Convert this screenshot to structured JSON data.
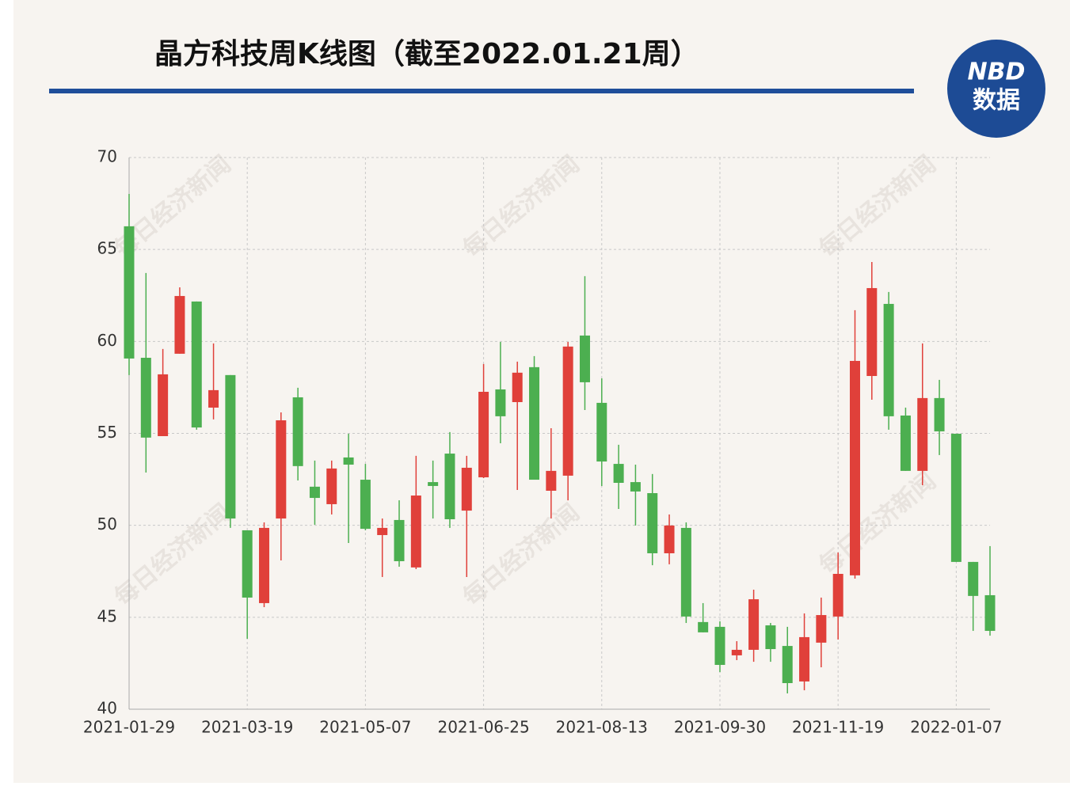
{
  "chart_data": {
    "type": "candlestick",
    "title": "晶方科技周K线图（截至2022.01.21周）",
    "logo_top": "NBD",
    "logo_bottom": "数据",
    "watermark": "每日经济新闻",
    "categories": [
      "2021-01-29",
      null,
      null,
      null,
      null,
      null,
      null,
      "2021-03-19",
      null,
      null,
      null,
      null,
      null,
      null,
      "2021-05-07",
      null,
      null,
      null,
      null,
      null,
      null,
      "2021-06-25",
      null,
      null,
      null,
      null,
      null,
      null,
      "2021-08-13",
      null,
      null,
      null,
      null,
      null,
      null,
      "2021-09-30",
      null,
      null,
      null,
      null,
      null,
      null,
      "2021-11-19",
      null,
      null,
      null,
      null,
      null,
      null,
      "2022-01-07",
      null,
      null
    ],
    "open": [
      66.26,
      59.11,
      54.85,
      59.33,
      62.17,
      56.4,
      58.17,
      49.73,
      45.77,
      50.37,
      56.96,
      52.1,
      51.15,
      53.69,
      52.48,
      49.47,
      50.29,
      47.71,
      52.35,
      53.9,
      50.8,
      52.61,
      57.39,
      56.7,
      58.6,
      51.88,
      52.7,
      60.32,
      56.66,
      53.34,
      52.35,
      51.75,
      48.48,
      49.86,
      44.74,
      44.48,
      42.93,
      43.23,
      44.56,
      43.44,
      41.51,
      43.62,
      45.04,
      47.28,
      58.12,
      62.04,
      55.97,
      52.96,
      56.92,
      54.98,
      48.01,
      46.2
    ],
    "high": [
      68.02,
      63.72,
      59.59,
      62.94,
      62.17,
      59.89,
      58.17,
      49.73,
      50.16,
      56.14,
      57.48,
      53.52,
      53.52,
      54.98,
      53.34,
      50.37,
      51.36,
      53.78,
      53.52,
      55.07,
      53.78,
      58.77,
      59.97,
      58.9,
      59.2,
      55.28,
      59.97,
      63.55,
      57.99,
      54.38,
      53.3,
      52.79,
      50.59,
      50.16,
      45.77,
      44.78,
      43.7,
      46.5,
      44.69,
      44.48,
      45.21,
      46.07,
      48.52,
      61.7,
      64.32,
      62.69,
      56.4,
      59.89,
      57.91,
      54.98,
      48.01,
      48.87
    ],
    "low": [
      58.17,
      52.87,
      54.85,
      59.33,
      55.2,
      55.76,
      49.86,
      43.83,
      45.55,
      48.09,
      52.44,
      50.03,
      50.59,
      49.04,
      49.73,
      47.19,
      47.75,
      47.62,
      50.37,
      49.86,
      47.19,
      52.57,
      54.46,
      51.92,
      52.48,
      50.37,
      51.36,
      56.27,
      52.14,
      50.89,
      49.99,
      47.83,
      47.88,
      44.69,
      44.18,
      42.02,
      42.67,
      42.58,
      42.58,
      40.86,
      41.03,
      42.28,
      43.79,
      47.1,
      56.83,
      55.2,
      52.96,
      52.18,
      53.82,
      48.01,
      44.26,
      44.0
    ],
    "close": [
      59.07,
      54.77,
      58.21,
      62.47,
      55.32,
      57.35,
      50.37,
      46.07,
      49.86,
      55.71,
      53.22,
      51.49,
      53.09,
      53.3,
      49.81,
      49.86,
      48.05,
      51.62,
      52.14,
      50.33,
      53.13,
      57.26,
      55.93,
      58.3,
      52.48,
      52.96,
      59.72,
      57.78,
      53.47,
      52.31,
      51.84,
      48.48,
      49.99,
      45.04,
      44.18,
      42.41,
      43.23,
      45.98,
      43.27,
      41.42,
      43.92,
      45.12,
      47.36,
      58.94,
      62.9,
      55.93,
      52.96,
      56.92,
      55.11,
      48.01,
      46.16,
      44.26
    ],
    "up_color": "#e0403a",
    "down_color": "#4caf50",
    "ylim": [
      40,
      70
    ],
    "yticks": [
      40,
      45,
      50,
      55,
      60,
      65,
      70
    ],
    "grid": true
  }
}
